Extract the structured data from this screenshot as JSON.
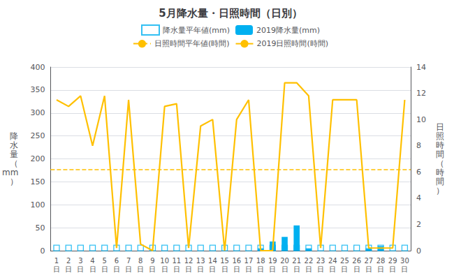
{
  "chart_data": {
    "type": "bar",
    "title": "5月降水量・日照時間（日別）",
    "categories": [
      "1\n日",
      "2\n日",
      "3\n日",
      "4\n日",
      "5\n日",
      "6\n日",
      "7\n日",
      "8\n日",
      "9\n日",
      "10\n日",
      "11\n日",
      "12\n日",
      "13\n日",
      "14\n日",
      "15\n日",
      "16\n日",
      "17\n日",
      "18\n日",
      "19\n日",
      "20\n日",
      "21\n日",
      "22\n日",
      "23\n日",
      "24\n日",
      "25\n日",
      "26\n日",
      "27\n日",
      "28\n日",
      "29\n日",
      "30\n日"
    ],
    "ylabel": "降\n水\n量\n（\nmm\n）",
    "y2label": "日\n照\n時\n間\n（\n時\n間\n）",
    "ylim": [
      0,
      400
    ],
    "yticks": [
      0,
      50,
      100,
      150,
      200,
      250,
      300,
      350,
      400
    ],
    "y2lim": [
      0,
      14
    ],
    "y2ticks": [
      0,
      2,
      4,
      6,
      8,
      10,
      12,
      14
    ],
    "grid": true,
    "legend": "top",
    "series": [
      {
        "name": "降水量平年値(mm)",
        "type": "scatter",
        "marker": "square",
        "color": "#00b0f0",
        "values": [
          6,
          6,
          6,
          6,
          6,
          6,
          6,
          6,
          6,
          6,
          6,
          6,
          6,
          6,
          6,
          6,
          6,
          6,
          6,
          6,
          6,
          6,
          6,
          6,
          6,
          6,
          6,
          6,
          6,
          6
        ]
      },
      {
        "name": "2019降水量(mm)",
        "type": "bar",
        "color": "#00b0f0",
        "values": [
          0,
          0,
          0,
          0,
          0,
          0,
          0,
          0,
          0,
          0,
          0,
          0,
          0,
          0,
          0,
          0,
          0,
          5,
          20,
          30,
          55,
          5,
          0,
          0,
          0,
          0,
          5,
          10,
          0,
          0
        ]
      },
      {
        "name": "日照時間平年値(時間)",
        "type": "hline",
        "axis": "y2",
        "line_style": "dashed",
        "color": "#ffc000",
        "value": 6.2
      },
      {
        "name": "2019日照時間(時間)",
        "type": "line",
        "axis": "y2",
        "line_style": "solid",
        "color": "#ffc000",
        "values": [
          11.5,
          11.0,
          11.8,
          8.0,
          11.8,
          0.2,
          11.5,
          0.5,
          0.0,
          11.0,
          11.2,
          0.2,
          9.5,
          10.0,
          0.0,
          10.0,
          11.5,
          0.0,
          0.0,
          12.8,
          12.8,
          11.8,
          0.2,
          11.5,
          11.5,
          11.5,
          0.2,
          0.2,
          0.2,
          11.5
        ]
      }
    ]
  }
}
